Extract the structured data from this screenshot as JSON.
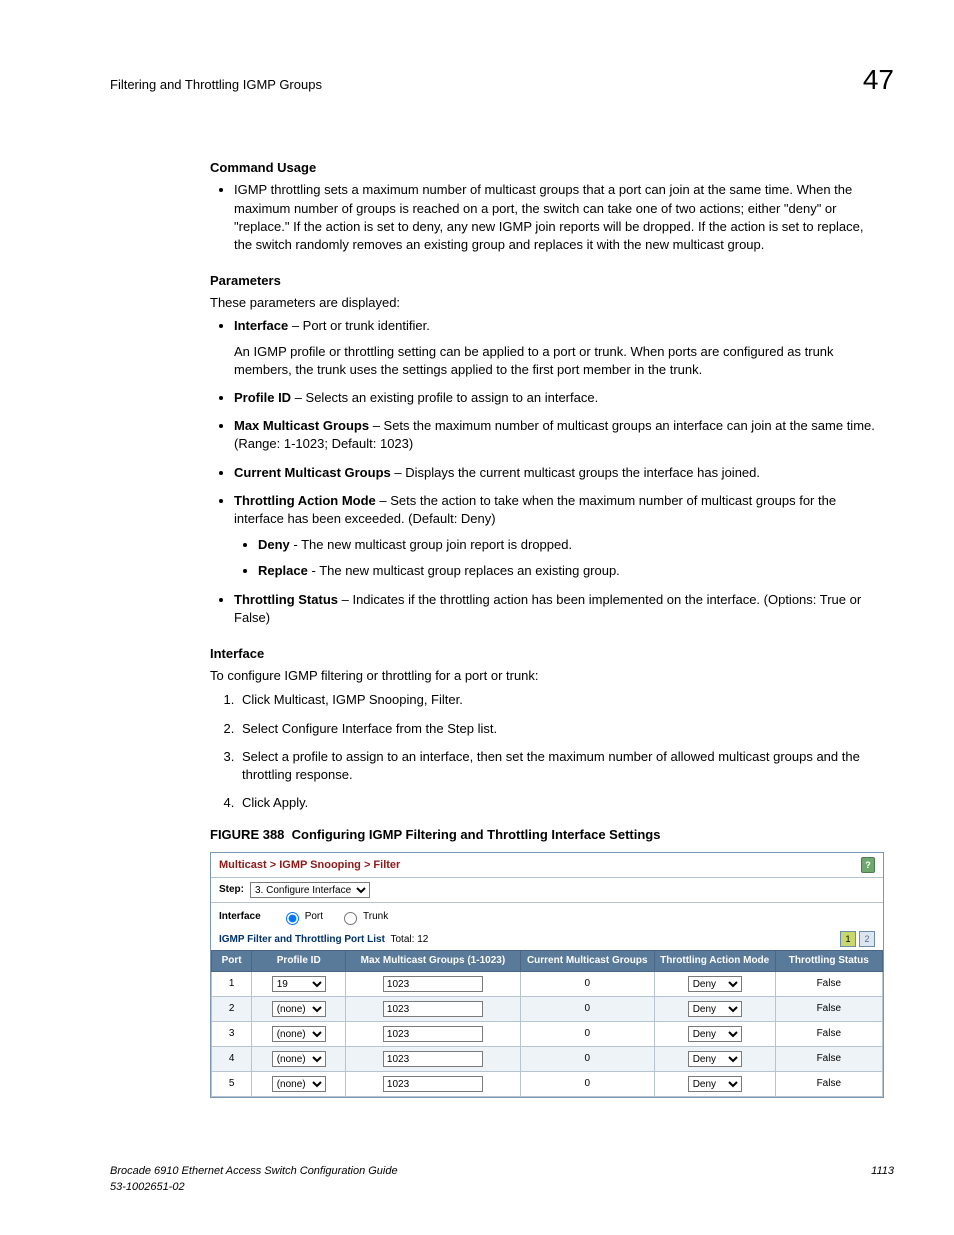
{
  "header": {
    "title": "Filtering and Throttling IGMP Groups",
    "chapter": "47"
  },
  "sections": {
    "command_usage": {
      "heading": "Command Usage",
      "bullet": "IGMP throttling sets a maximum number of multicast groups that a port can join at the same time. When the maximum number of groups is reached on a port, the switch can take one of two actions; either \"deny\" or \"replace.\" If the action is set to deny, any new IGMP join reports will be dropped. If the action is set to replace, the switch randomly removes an existing group and replaces it with the new multicast group."
    },
    "parameters": {
      "heading": "Parameters",
      "intro": "These parameters are displayed:",
      "items": [
        {
          "term": "Interface",
          "desc": " – Port or trunk identifier.",
          "extra": "An IGMP profile or throttling setting can be applied to a port or trunk. When ports are configured as trunk members, the trunk uses the settings applied to the first port member in the trunk."
        },
        {
          "term": "Profile ID",
          "desc": " – Selects an existing profile to assign to an interface."
        },
        {
          "term": "Max Multicast Groups",
          "desc": " – Sets the maximum number of multicast groups an interface can join at the same time. (Range: 1-1023; Default: 1023)"
        },
        {
          "term": "Current Multicast Groups",
          "desc": " – Displays the current multicast groups the interface has joined."
        },
        {
          "term": "Throttling Action Mode",
          "desc": " – Sets the action to take when the maximum number of multicast groups for the interface has been exceeded. (Default: Deny)",
          "sub": [
            {
              "term": "Deny",
              "desc": " - The new multicast group join report is dropped."
            },
            {
              "term": "Replace",
              "desc": " - The new multicast group replaces an existing group."
            }
          ]
        },
        {
          "term": "Throttling Status",
          "desc": " – Indicates if the throttling action has been implemented on the interface. (Options: True or False)"
        }
      ]
    },
    "interface": {
      "heading": "Interface",
      "intro": "To configure IGMP filtering or throttling for a port or trunk:",
      "steps": [
        "Click Multicast, IGMP Snooping, Filter.",
        "Select Configure Interface from the Step list.",
        "Select a profile to assign to an interface, then set the maximum number of allowed multicast groups and the throttling response.",
        "Click Apply."
      ]
    }
  },
  "figure": {
    "num": "FIGURE 388",
    "title": "Configuring IGMP Filtering and Throttling Interface Settings"
  },
  "ui": {
    "breadcrumb": "Multicast > IGMP  Snooping > Filter",
    "help": "?",
    "step_label": "Step:",
    "step_value": "3. Configure Interface",
    "iface_label": "Interface",
    "radio_port": "Port",
    "radio_trunk": "Trunk",
    "list_heading": "IGMP Filter and Throttling Port List",
    "total_label": "Total:",
    "total_value": "12",
    "page1": "1",
    "page2": "2",
    "columns": [
      "Port",
      "Profile ID",
      "Max Multicast Groups (1-1023)",
      "Current Multicast Groups",
      "Throttling Action Mode",
      "Throttling Status"
    ],
    "rows": [
      {
        "port": "1",
        "profile": "19",
        "max": "1023",
        "current": "0",
        "mode": "Deny",
        "status": "False"
      },
      {
        "port": "2",
        "profile": "(none)",
        "max": "1023",
        "current": "0",
        "mode": "Deny",
        "status": "False"
      },
      {
        "port": "3",
        "profile": "(none)",
        "max": "1023",
        "current": "0",
        "mode": "Deny",
        "status": "False"
      },
      {
        "port": "4",
        "profile": "(none)",
        "max": "1023",
        "current": "0",
        "mode": "Deny",
        "status": "False"
      },
      {
        "port": "5",
        "profile": "(none)",
        "max": "1023",
        "current": "0",
        "mode": "Deny",
        "status": "False"
      }
    ]
  },
  "footer": {
    "line1": "Brocade 6910 Ethernet Access Switch Configuration Guide",
    "line2": "53-1002651-02",
    "page": "1113"
  }
}
